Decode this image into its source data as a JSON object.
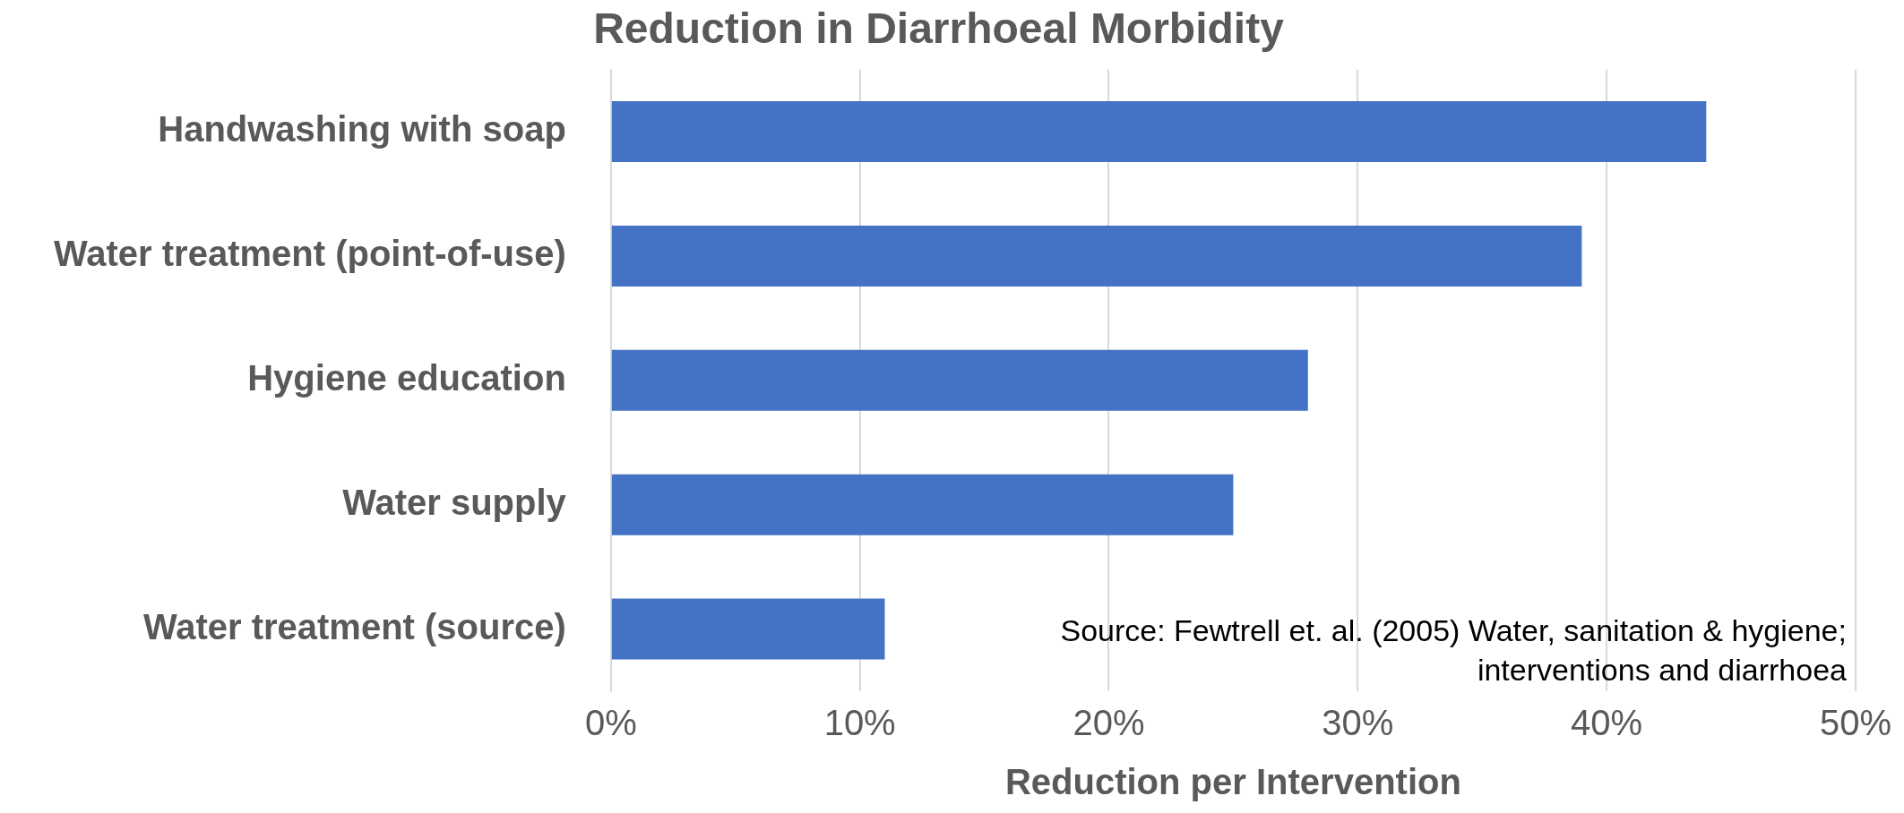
{
  "chart_data": {
    "type": "bar",
    "orientation": "horizontal",
    "title": "Reduction in Diarrhoeal Morbidity",
    "xlabel": "Reduction per Intervention",
    "categories": [
      "Handwashing with soap",
      "Water treatment (point-of-use)",
      "Hygiene education",
      "Water supply",
      "Water treatment (source)"
    ],
    "values": [
      44,
      39,
      28,
      25,
      11
    ],
    "color": "#4472c4",
    "xlim": [
      0,
      50
    ],
    "xticks": [
      {
        "value": 0,
        "label": "0%"
      },
      {
        "value": 10,
        "label": "10%"
      },
      {
        "value": 20,
        "label": "20%"
      },
      {
        "value": 30,
        "label": "30%"
      },
      {
        "value": 40,
        "label": "40%"
      },
      {
        "value": 50,
        "label": "50%"
      }
    ],
    "grid": "x",
    "legend": false,
    "annotations": [
      "Source: Fewtrell et. al. (2005) Water, sanitation & hygiene; interventions and diarrhoea"
    ]
  }
}
